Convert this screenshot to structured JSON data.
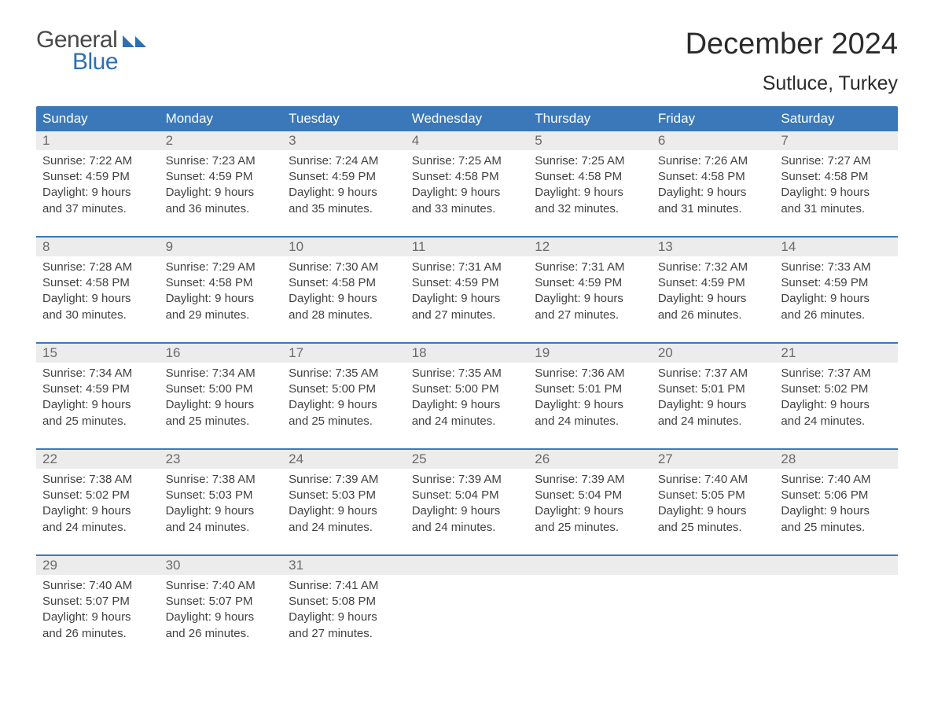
{
  "logo": {
    "top": "General",
    "bottom": "Blue",
    "flag_color": "#2f6fb3",
    "top_color": "#4a4a4a",
    "bottom_color": "#2f6fb3"
  },
  "title": "December 2024",
  "location": "Sutluce, Turkey",
  "colors": {
    "header_bg": "#3a78b9",
    "header_text": "#ffffff",
    "daybar_bg": "#ececec",
    "daynum_text": "#6a6a6a",
    "body_text": "#414141",
    "week_divider": "#3a78b9",
    "page_bg": "#ffffff"
  },
  "typography": {
    "title_fontsize": 38,
    "location_fontsize": 25,
    "dow_fontsize": 17,
    "daynum_fontsize": 17,
    "body_fontsize": 15
  },
  "days_of_week": [
    "Sunday",
    "Monday",
    "Tuesday",
    "Wednesday",
    "Thursday",
    "Friday",
    "Saturday"
  ],
  "weeks": [
    [
      {
        "n": "1",
        "sunrise": "Sunrise: 7:22 AM",
        "sunset": "Sunset: 4:59 PM",
        "d1": "Daylight: 9 hours",
        "d2": "and 37 minutes."
      },
      {
        "n": "2",
        "sunrise": "Sunrise: 7:23 AM",
        "sunset": "Sunset: 4:59 PM",
        "d1": "Daylight: 9 hours",
        "d2": "and 36 minutes."
      },
      {
        "n": "3",
        "sunrise": "Sunrise: 7:24 AM",
        "sunset": "Sunset: 4:59 PM",
        "d1": "Daylight: 9 hours",
        "d2": "and 35 minutes."
      },
      {
        "n": "4",
        "sunrise": "Sunrise: 7:25 AM",
        "sunset": "Sunset: 4:58 PM",
        "d1": "Daylight: 9 hours",
        "d2": "and 33 minutes."
      },
      {
        "n": "5",
        "sunrise": "Sunrise: 7:25 AM",
        "sunset": "Sunset: 4:58 PM",
        "d1": "Daylight: 9 hours",
        "d2": "and 32 minutes."
      },
      {
        "n": "6",
        "sunrise": "Sunrise: 7:26 AM",
        "sunset": "Sunset: 4:58 PM",
        "d1": "Daylight: 9 hours",
        "d2": "and 31 minutes."
      },
      {
        "n": "7",
        "sunrise": "Sunrise: 7:27 AM",
        "sunset": "Sunset: 4:58 PM",
        "d1": "Daylight: 9 hours",
        "d2": "and 31 minutes."
      }
    ],
    [
      {
        "n": "8",
        "sunrise": "Sunrise: 7:28 AM",
        "sunset": "Sunset: 4:58 PM",
        "d1": "Daylight: 9 hours",
        "d2": "and 30 minutes."
      },
      {
        "n": "9",
        "sunrise": "Sunrise: 7:29 AM",
        "sunset": "Sunset: 4:58 PM",
        "d1": "Daylight: 9 hours",
        "d2": "and 29 minutes."
      },
      {
        "n": "10",
        "sunrise": "Sunrise: 7:30 AM",
        "sunset": "Sunset: 4:58 PM",
        "d1": "Daylight: 9 hours",
        "d2": "and 28 minutes."
      },
      {
        "n": "11",
        "sunrise": "Sunrise: 7:31 AM",
        "sunset": "Sunset: 4:59 PM",
        "d1": "Daylight: 9 hours",
        "d2": "and 27 minutes."
      },
      {
        "n": "12",
        "sunrise": "Sunrise: 7:31 AM",
        "sunset": "Sunset: 4:59 PM",
        "d1": "Daylight: 9 hours",
        "d2": "and 27 minutes."
      },
      {
        "n": "13",
        "sunrise": "Sunrise: 7:32 AM",
        "sunset": "Sunset: 4:59 PM",
        "d1": "Daylight: 9 hours",
        "d2": "and 26 minutes."
      },
      {
        "n": "14",
        "sunrise": "Sunrise: 7:33 AM",
        "sunset": "Sunset: 4:59 PM",
        "d1": "Daylight: 9 hours",
        "d2": "and 26 minutes."
      }
    ],
    [
      {
        "n": "15",
        "sunrise": "Sunrise: 7:34 AM",
        "sunset": "Sunset: 4:59 PM",
        "d1": "Daylight: 9 hours",
        "d2": "and 25 minutes."
      },
      {
        "n": "16",
        "sunrise": "Sunrise: 7:34 AM",
        "sunset": "Sunset: 5:00 PM",
        "d1": "Daylight: 9 hours",
        "d2": "and 25 minutes."
      },
      {
        "n": "17",
        "sunrise": "Sunrise: 7:35 AM",
        "sunset": "Sunset: 5:00 PM",
        "d1": "Daylight: 9 hours",
        "d2": "and 25 minutes."
      },
      {
        "n": "18",
        "sunrise": "Sunrise: 7:35 AM",
        "sunset": "Sunset: 5:00 PM",
        "d1": "Daylight: 9 hours",
        "d2": "and 24 minutes."
      },
      {
        "n": "19",
        "sunrise": "Sunrise: 7:36 AM",
        "sunset": "Sunset: 5:01 PM",
        "d1": "Daylight: 9 hours",
        "d2": "and 24 minutes."
      },
      {
        "n": "20",
        "sunrise": "Sunrise: 7:37 AM",
        "sunset": "Sunset: 5:01 PM",
        "d1": "Daylight: 9 hours",
        "d2": "and 24 minutes."
      },
      {
        "n": "21",
        "sunrise": "Sunrise: 7:37 AM",
        "sunset": "Sunset: 5:02 PM",
        "d1": "Daylight: 9 hours",
        "d2": "and 24 minutes."
      }
    ],
    [
      {
        "n": "22",
        "sunrise": "Sunrise: 7:38 AM",
        "sunset": "Sunset: 5:02 PM",
        "d1": "Daylight: 9 hours",
        "d2": "and 24 minutes."
      },
      {
        "n": "23",
        "sunrise": "Sunrise: 7:38 AM",
        "sunset": "Sunset: 5:03 PM",
        "d1": "Daylight: 9 hours",
        "d2": "and 24 minutes."
      },
      {
        "n": "24",
        "sunrise": "Sunrise: 7:39 AM",
        "sunset": "Sunset: 5:03 PM",
        "d1": "Daylight: 9 hours",
        "d2": "and 24 minutes."
      },
      {
        "n": "25",
        "sunrise": "Sunrise: 7:39 AM",
        "sunset": "Sunset: 5:04 PM",
        "d1": "Daylight: 9 hours",
        "d2": "and 24 minutes."
      },
      {
        "n": "26",
        "sunrise": "Sunrise: 7:39 AM",
        "sunset": "Sunset: 5:04 PM",
        "d1": "Daylight: 9 hours",
        "d2": "and 25 minutes."
      },
      {
        "n": "27",
        "sunrise": "Sunrise: 7:40 AM",
        "sunset": "Sunset: 5:05 PM",
        "d1": "Daylight: 9 hours",
        "d2": "and 25 minutes."
      },
      {
        "n": "28",
        "sunrise": "Sunrise: 7:40 AM",
        "sunset": "Sunset: 5:06 PM",
        "d1": "Daylight: 9 hours",
        "d2": "and 25 minutes."
      }
    ],
    [
      {
        "n": "29",
        "sunrise": "Sunrise: 7:40 AM",
        "sunset": "Sunset: 5:07 PM",
        "d1": "Daylight: 9 hours",
        "d2": "and 26 minutes."
      },
      {
        "n": "30",
        "sunrise": "Sunrise: 7:40 AM",
        "sunset": "Sunset: 5:07 PM",
        "d1": "Daylight: 9 hours",
        "d2": "and 26 minutes."
      },
      {
        "n": "31",
        "sunrise": "Sunrise: 7:41 AM",
        "sunset": "Sunset: 5:08 PM",
        "d1": "Daylight: 9 hours",
        "d2": "and 27 minutes."
      },
      null,
      null,
      null,
      null
    ]
  ]
}
